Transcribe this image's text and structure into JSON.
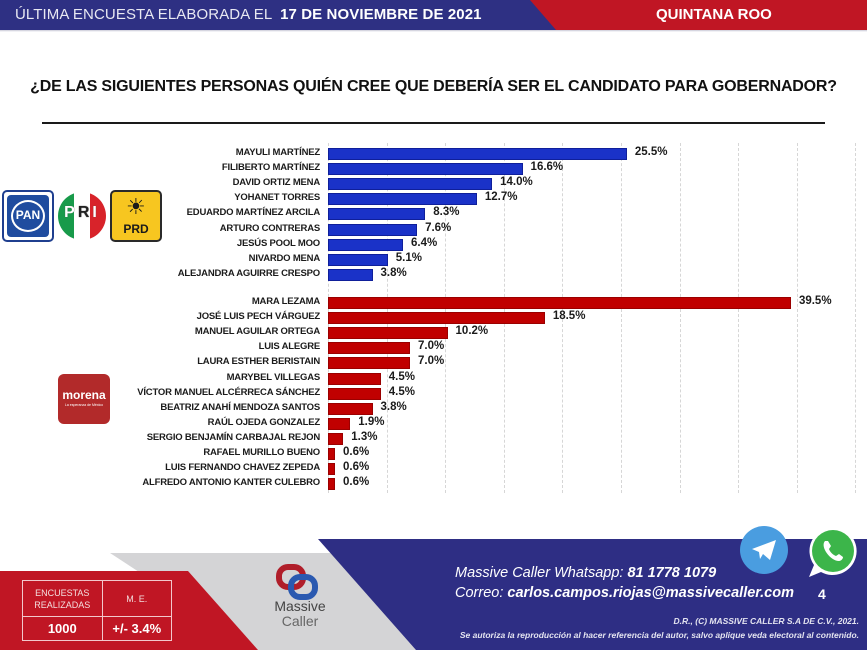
{
  "header": {
    "prefix": "ÚLTIMA ENCUESTA ELABORADA EL",
    "date": "17 DE NOVIEMBRE DE 2021",
    "state": "QUINTANA ROO"
  },
  "question": "¿DE LAS SIGUIENTES PERSONAS QUIÉN CREE QUE DEBERÍA SER EL CANDIDATO PARA GOBERNADOR?",
  "logos": {
    "pan": "PAN",
    "pri": [
      "P",
      "R",
      "I"
    ],
    "prd": "PRD",
    "prd_sun": "☀",
    "morena": "morena",
    "morena_sub": "La esperanza de México"
  },
  "chart_data": [
    {
      "type": "bar",
      "orientation": "horizontal",
      "group": "PAN-PRI-PRD",
      "color": "#1a32c8",
      "categories": [
        "MAYULI MARTÍNEZ",
        "FILIBERTO MARTÍNEZ",
        "DAVID ORTIZ MENA",
        "YOHANET TORRES",
        "EDUARDO MARTÍNEZ ARCILA",
        "ARTURO CONTRERAS",
        "JESÚS POOL MOO",
        "NIVARDO MENA",
        "ALEJANDRA AGUIRRE CRESPO"
      ],
      "values": [
        25.5,
        16.6,
        14.0,
        12.7,
        8.3,
        7.6,
        6.4,
        5.1,
        3.8
      ],
      "labels": [
        "25.5%",
        "16.6%",
        "14.0%",
        "12.7%",
        "8.3%",
        "7.6%",
        "6.4%",
        "5.1%",
        "3.8%"
      ],
      "xlim": [
        0,
        45
      ],
      "grid": true,
      "grid_step": 5
    },
    {
      "type": "bar",
      "orientation": "horizontal",
      "group": "MORENA",
      "color": "#c00000",
      "categories": [
        "MARA LEZAMA",
        "JOSÉ LUIS PECH VÁRGUEZ",
        "MANUEL AGUILAR ORTEGA",
        "LUIS ALEGRE",
        "LAURA ESTHER BERISTAIN",
        "MARYBEL VILLEGAS",
        "VÍCTOR MANUEL ALCÉRRECA SÁNCHEZ",
        "BEATRIZ ANAHÍ MENDOZA SANTOS",
        "RAÚL OJEDA GONZALEZ",
        "SERGIO BENJAMÍN CARBAJAL REJON",
        "RAFAEL MURILLO BUENO",
        "LUIS FERNANDO CHAVEZ ZEPEDA",
        "ALFREDO ANTONIO KANTER CULEBRO"
      ],
      "values": [
        39.5,
        18.5,
        10.2,
        7.0,
        7.0,
        4.5,
        4.5,
        3.8,
        1.9,
        1.3,
        0.6,
        0.6,
        0.6
      ],
      "labels": [
        "39.5%",
        "18.5%",
        "10.2%",
        "7.0%",
        "7.0%",
        "4.5%",
        "4.5%",
        "3.8%",
        "1.9%",
        "1.3%",
        "0.6%",
        "0.6%",
        "0.6%"
      ],
      "xlim": [
        0,
        45
      ],
      "grid": true,
      "grid_step": 5
    }
  ],
  "footer": {
    "stats": {
      "surveys_label_1": "ENCUESTAS",
      "surveys_label_2": "REALIZADAS",
      "margin_label": "M. E.",
      "surveys_value": "1000",
      "margin_value": "+/- 3.4%"
    },
    "brand_line1": "Massive",
    "brand_line2": "Caller",
    "whatsapp_label": "Massive Caller Whatsapp:",
    "whatsapp_number": "81 1778 1079",
    "email_label": "Correo:",
    "email": "carlos.campos.riojas@massivecaller.com",
    "page_number": "4",
    "copyright": "D.R., (C) MASSIVE CALLER S.A DE C.V., 2021.",
    "legal": "Se autoriza la reproducción al hacer referencia del autor, salvo aplique veda electoral al contenido.",
    "icons": [
      "telegram-icon",
      "whatsapp-icon"
    ]
  }
}
